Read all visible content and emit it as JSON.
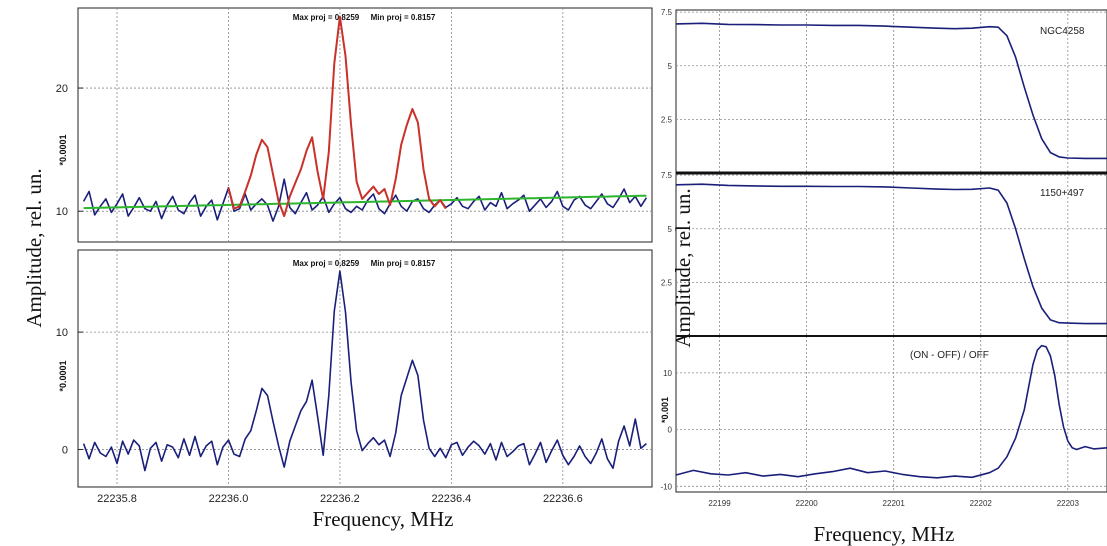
{
  "figure": {
    "left_ylabel": "Amplitude, rel. un.",
    "left_xlabel": "Frequency, MHz",
    "right_ylabel": "Amplitude, rel. un.",
    "right_xlabel": "Frequency, MHz"
  },
  "colors": {
    "navy": "#1a1f7a",
    "red": "#c8322a",
    "green": "#2db52d",
    "grid": "#8a8a8a"
  },
  "chart_data": [
    {
      "type": "line",
      "panel": "left-top",
      "header_max": "Max proj = 0.8259",
      "header_min": "Min proj = 0.8157",
      "scale_label": "*0.0001",
      "xlim": [
        22235.73,
        22236.76
      ],
      "ylim": [
        7.5,
        26.5
      ],
      "yticks": [
        10,
        20
      ],
      "grid": true,
      "x": [
        22235.74,
        22235.75,
        22235.76,
        22235.77,
        22235.78,
        22235.79,
        22235.8,
        22235.81,
        22235.82,
        22235.83,
        22235.84,
        22235.85,
        22235.86,
        22235.87,
        22235.88,
        22235.89,
        22235.9,
        22235.91,
        22235.92,
        22235.93,
        22235.94,
        22235.95,
        22235.96,
        22235.97,
        22235.98,
        22235.99,
        22236.0,
        22236.01,
        22236.02,
        22236.03,
        22236.04,
        22236.05,
        22236.06,
        22236.07,
        22236.08,
        22236.09,
        22236.1,
        22236.11,
        22236.12,
        22236.13,
        22236.14,
        22236.15,
        22236.16,
        22236.17,
        22236.18,
        22236.19,
        22236.2,
        22236.21,
        22236.22,
        22236.23,
        22236.24,
        22236.25,
        22236.26,
        22236.27,
        22236.28,
        22236.29,
        22236.3,
        22236.31,
        22236.32,
        22236.33,
        22236.34,
        22236.35,
        22236.36,
        22236.37,
        22236.38,
        22236.39,
        22236.4,
        22236.41,
        22236.42,
        22236.43,
        22236.44,
        22236.45,
        22236.46,
        22236.47,
        22236.48,
        22236.49,
        22236.5,
        22236.51,
        22236.52,
        22236.53,
        22236.54,
        22236.55,
        22236.56,
        22236.57,
        22236.58,
        22236.59,
        22236.6,
        22236.61,
        22236.62,
        22236.63,
        22236.64,
        22236.65,
        22236.66,
        22236.67,
        22236.68,
        22236.69,
        22236.7,
        22236.71,
        22236.72,
        22236.73,
        22236.74,
        22236.75
      ],
      "series": [
        {
          "values": [
            10.8,
            11.6,
            9.7,
            10.4,
            11.0,
            9.9,
            10.6,
            11.4,
            9.6,
            10.3,
            11.1,
            10.2,
            10.0,
            10.8,
            9.4,
            10.5,
            11.2,
            10.1,
            9.8,
            10.7,
            11.3,
            9.6,
            10.4,
            10.9,
            9.3,
            10.6,
            11.9,
            10.0,
            10.2,
            11.4,
            10.1,
            10.6,
            11.0,
            10.5,
            9.2,
            10.4,
            12.6,
            10.3,
            9.8,
            10.7,
            11.5,
            10.1,
            10.5,
            11.2,
            9.9,
            10.6,
            11.1,
            10.2,
            9.9,
            10.4,
            10.1,
            10.9,
            11.4,
            10.2,
            9.8,
            10.6,
            11.3,
            10.4,
            10.0,
            10.8,
            11.0,
            10.2,
            9.9,
            10.5,
            10.9,
            10.3,
            10.6,
            11.1,
            10.4,
            10.2,
            10.8,
            11.2,
            10.1,
            10.7,
            10.4,
            11.5,
            10.2,
            10.6,
            10.9,
            11.3,
            10.0,
            10.5,
            11.0,
            10.3,
            10.8,
            11.6,
            10.4,
            10.1,
            10.9,
            11.2,
            10.5,
            10.2,
            10.8,
            11.4,
            10.6,
            10.3,
            11.0,
            11.8,
            10.7,
            11.2,
            10.4,
            11.1
          ]
        },
        {
          "values": [
            null,
            null,
            null,
            null,
            null,
            null,
            null,
            null,
            null,
            null,
            null,
            null,
            null,
            null,
            null,
            null,
            null,
            null,
            null,
            null,
            null,
            null,
            null,
            null,
            null,
            null,
            11.9,
            10.2,
            10.4,
            11.6,
            12.9,
            14.6,
            15.8,
            15.2,
            13.0,
            10.8,
            9.6,
            11.2,
            12.3,
            13.4,
            14.9,
            16.0,
            13.2,
            11.0,
            14.8,
            22.0,
            25.8,
            22.6,
            17.0,
            12.4,
            11.0,
            11.5,
            12.0,
            11.4,
            11.8,
            10.5,
            12.6,
            15.4,
            17.0,
            18.3,
            17.2,
            13.4,
            11.0,
            10.4,
            10.9,
            10.2,
            null,
            null,
            null,
            null,
            null,
            null,
            null,
            null,
            null,
            null,
            null,
            null,
            null,
            null,
            null,
            null,
            null,
            null,
            null,
            null,
            null,
            null,
            null,
            null,
            null,
            null,
            null,
            null,
            null,
            null,
            null,
            null,
            null,
            null,
            null,
            null
          ]
        },
        {
          "values": [
            10.25,
            10.26,
            10.27,
            10.28,
            10.29,
            10.3,
            10.31,
            10.32,
            10.33,
            10.34,
            10.35,
            10.36,
            10.37,
            10.38,
            10.39,
            10.4,
            10.41,
            10.42,
            10.43,
            10.44,
            10.45,
            10.46,
            10.47,
            10.48,
            10.49,
            10.5,
            10.51,
            10.52,
            10.53,
            10.54,
            10.55,
            10.56,
            10.57,
            10.58,
            10.59,
            10.6,
            10.61,
            10.62,
            10.63,
            10.64,
            10.65,
            10.66,
            10.67,
            10.68,
            10.69,
            10.7,
            10.71,
            10.72,
            10.73,
            10.74,
            10.75,
            10.76,
            10.77,
            10.78,
            10.79,
            10.8,
            10.81,
            10.82,
            10.83,
            10.84,
            10.85,
            10.86,
            10.87,
            10.88,
            10.89,
            10.9,
            10.91,
            10.92,
            10.93,
            10.94,
            10.95,
            10.96,
            10.97,
            10.98,
            10.99,
            11.0,
            11.01,
            11.02,
            11.03,
            11.04,
            11.05,
            11.06,
            11.07,
            11.08,
            11.09,
            11.1,
            11.11,
            11.12,
            11.13,
            11.14,
            11.15,
            11.16,
            11.17,
            11.18,
            11.19,
            11.2,
            11.21,
            11.22,
            11.23,
            11.24,
            11.25,
            11.26
          ]
        }
      ]
    },
    {
      "type": "line",
      "panel": "left-bottom",
      "header_max": "Max proj = 0.8259",
      "header_min": "Min proj = 0.8157",
      "scale_label": "*0.0001",
      "xlim": [
        22235.73,
        22236.76
      ],
      "ylim": [
        -3.2,
        17.0
      ],
      "yticks": [
        0,
        10
      ],
      "xticks": [
        "22235.8",
        "22236.0",
        "22236.2",
        "22236.4",
        "22236.6"
      ],
      "xtick_values": [
        22235.8,
        22236.0,
        22236.2,
        22236.4,
        22236.6
      ],
      "grid": true,
      "series": [
        {
          "values": [
            0.5,
            -0.8,
            0.6,
            -0.3,
            -0.6,
            0.2,
            -1.2,
            0.7,
            -0.4,
            0.8,
            0.3,
            -1.8,
            0.1,
            0.6,
            -1.0,
            0.4,
            0.2,
            -0.7,
            0.9,
            -0.5,
            1.1,
            -0.6,
            0.3,
            0.7,
            -1.3,
            0.2,
            0.8,
            -0.4,
            -0.6,
            0.9,
            1.6,
            3.3,
            5.2,
            4.6,
            2.4,
            0.3,
            -1.5,
            0.7,
            2.0,
            3.3,
            4.1,
            5.9,
            2.8,
            -0.5,
            4.6,
            11.8,
            15.2,
            11.7,
            5.7,
            1.6,
            -0.1,
            0.5,
            1.0,
            0.4,
            0.8,
            -0.6,
            1.4,
            4.6,
            6.1,
            7.6,
            6.3,
            2.5,
            0.1,
            -0.6,
            0.1,
            -0.7,
            0.4,
            0.6,
            -0.5,
            0.2,
            0.7,
            0.3,
            -0.4,
            0.5,
            -0.9,
            0.6,
            -0.6,
            -0.2,
            0.3,
            0.5,
            -1.3,
            -0.4,
            0.6,
            -1.1,
            -0.1,
            0.8,
            -0.5,
            -1.3,
            -0.6,
            0.3,
            -0.6,
            -1.2,
            -0.3,
            0.9,
            -0.8,
            -1.6,
            0.7,
            2.0,
            0.3,
            2.6,
            0.1,
            0.5
          ]
        }
      ]
    },
    {
      "type": "line",
      "panel": "right-top",
      "label": "NGC4258",
      "xlim": [
        22198.5,
        22203.45
      ],
      "ylim": [
        0,
        7.6
      ],
      "yticks": [
        "2.5",
        "5",
        "7.5"
      ],
      "ytick_values": [
        2.5,
        5,
        7.5
      ],
      "grid": true,
      "x": [
        22198.5,
        22198.8,
        22199.1,
        22199.4,
        22199.7,
        22200.0,
        22200.3,
        22200.6,
        22200.9,
        22201.2,
        22201.5,
        22201.7,
        22201.9,
        22202.1,
        22202.2,
        22202.3,
        22202.4,
        22202.5,
        22202.6,
        22202.7,
        22202.8,
        22202.9,
        22203.0,
        22203.2,
        22203.45
      ],
      "series": [
        {
          "values": [
            6.95,
            6.98,
            6.93,
            6.92,
            6.9,
            6.9,
            6.88,
            6.88,
            6.85,
            6.8,
            6.75,
            6.73,
            6.75,
            6.82,
            6.8,
            6.4,
            5.4,
            4.0,
            2.7,
            1.6,
            0.95,
            0.75,
            0.7,
            0.68,
            0.68
          ]
        }
      ]
    },
    {
      "type": "line",
      "panel": "right-middle",
      "label": "1150+497",
      "xlim": [
        22198.5,
        22203.45
      ],
      "ylim": [
        0,
        7.6
      ],
      "yticks": [
        "2.5",
        "5",
        "7.5"
      ],
      "ytick_values": [
        2.5,
        5,
        7.5
      ],
      "grid": true,
      "x": [
        22198.5,
        22198.8,
        22199.1,
        22199.4,
        22199.7,
        22200.0,
        22200.3,
        22200.6,
        22200.9,
        22201.2,
        22201.5,
        22201.7,
        22201.9,
        22202.1,
        22202.2,
        22202.3,
        22202.4,
        22202.5,
        22202.6,
        22202.7,
        22202.8,
        22202.9,
        22203.0,
        22203.2,
        22203.45
      ],
      "series": [
        {
          "values": [
            7.05,
            7.08,
            7.02,
            7.0,
            6.98,
            6.98,
            6.97,
            6.97,
            6.95,
            6.9,
            6.85,
            6.83,
            6.84,
            6.9,
            6.8,
            6.2,
            5.0,
            3.6,
            2.3,
            1.3,
            0.75,
            0.62,
            0.6,
            0.58,
            0.58
          ]
        }
      ]
    },
    {
      "type": "line",
      "panel": "right-bottom",
      "label": "(ON - OFF) / OFF",
      "scale_label": "*0.001",
      "xlim": [
        22198.5,
        22203.45
      ],
      "ylim": [
        -11,
        16.5
      ],
      "yticks": [
        "-10",
        "0",
        "10"
      ],
      "ytick_values": [
        -10,
        0,
        10
      ],
      "xticks": [
        "22199",
        "22200",
        "22201",
        "22202",
        "22203"
      ],
      "xtick_values": [
        22199,
        22200,
        22201,
        22202,
        22203
      ],
      "grid": true,
      "x": [
        22198.5,
        22198.7,
        22198.9,
        22199.1,
        22199.3,
        22199.5,
        22199.7,
        22199.9,
        22200.1,
        22200.3,
        22200.5,
        22200.7,
        22200.9,
        22201.1,
        22201.3,
        22201.5,
        22201.7,
        22201.9,
        22202.1,
        22202.2,
        22202.3,
        22202.4,
        22202.5,
        22202.55,
        22202.6,
        22202.65,
        22202.7,
        22202.75,
        22202.8,
        22202.85,
        22202.9,
        22202.95,
        22203.0,
        22203.05,
        22203.1,
        22203.2,
        22203.3,
        22203.45
      ],
      "series": [
        {
          "values": [
            -8.0,
            -7.2,
            -7.8,
            -8.0,
            -7.6,
            -8.2,
            -7.9,
            -8.3,
            -7.8,
            -7.4,
            -6.8,
            -7.6,
            -7.3,
            -7.9,
            -8.3,
            -8.5,
            -8.2,
            -8.4,
            -7.6,
            -6.8,
            -4.8,
            -1.5,
            3.5,
            7.5,
            11.5,
            14.0,
            14.8,
            14.6,
            13.0,
            9.5,
            4.5,
            0.5,
            -2.0,
            -3.2,
            -3.5,
            -3.0,
            -3.4,
            -3.2
          ]
        }
      ]
    }
  ]
}
